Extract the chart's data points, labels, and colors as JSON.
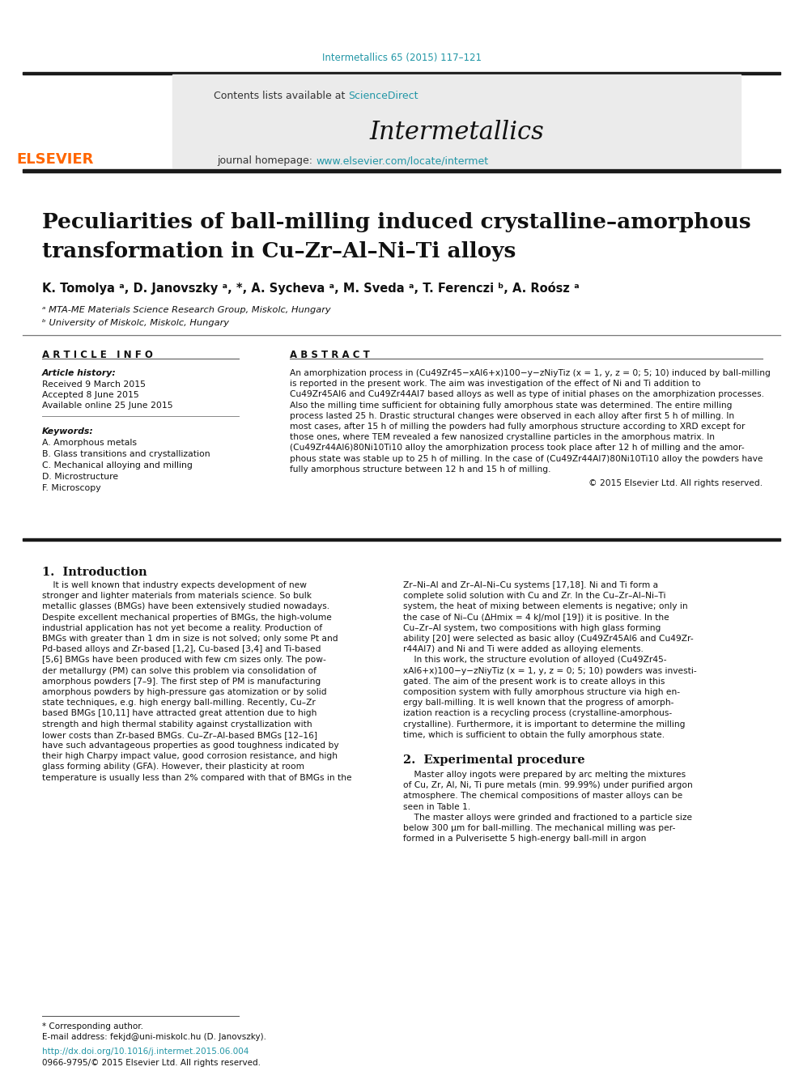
{
  "journal_ref": "Intermetallics 65 (2015) 117–121",
  "journal_name": "Intermetallics",
  "contents_text": "Contents lists available at ",
  "sciencedirect_text": "ScienceDirect",
  "homepage_text": "journal homepage: ",
  "homepage_url": "www.elsevier.com/locate/intermet",
  "title_line1": "Peculiarities of ball-milling induced crystalline–amorphous",
  "title_line2": "transformation in Cu–Zr–Al–Ni–Ti alloys",
  "authors": "K. Tomolya ᵃ, D. Janovszky ᵃ, *, A. Sycheva ᵃ, M. Sveda ᵃ, T. Ferenczi ᵇ, A. Roósz ᵃ",
  "affil_a": "ᵃ MTA-ME Materials Science Research Group, Miskolc, Hungary",
  "affil_b": "ᵇ University of Miskolc, Miskolc, Hungary",
  "article_info_title": "A R T I C L E   I N F O",
  "abstract_title": "A B S T R A C T",
  "article_history_title": "Article history:",
  "received": "Received 9 March 2015",
  "accepted": "Accepted 8 June 2015",
  "available": "Available online 25 June 2015",
  "keywords_title": "Keywords:",
  "keywords": [
    "A. Amorphous metals",
    "B. Glass transitions and crystallization",
    "C. Mechanical alloying and milling",
    "D. Microstructure",
    "F. Microscopy"
  ],
  "copyright": "© 2015 Elsevier Ltd. All rights reserved.",
  "section1_title": "1.  Introduction",
  "section2_title": "2.  Experimental procedure",
  "footnote_star": "* Corresponding author.",
  "footnote_email": "E-mail address: fekjd@uni-miskolc.hu (D. Janovszky).",
  "doi_text": "http://dx.doi.org/10.1016/j.intermet.2015.06.004",
  "issn_text": "0966-9795/© 2015 Elsevier Ltd. All rights reserved.",
  "bg_color": "#ffffff",
  "header_bg": "#ebebeb",
  "link_color": "#2196A6",
  "thick_rule_color": "#1a1a1a",
  "abstract_lines": [
    "An amorphization process in (Cu49Zr45−xAl6+x)100−y−zNiyTiz (x = 1, y, z = 0; 5; 10) induced by ball-milling",
    "is reported in the present work. The aim was investigation of the effect of Ni and Ti addition to",
    "Cu49Zr45Al6 and Cu49Zr44Al7 based alloys as well as type of initial phases on the amorphization processes.",
    "Also the milling time sufficient for obtaining fully amorphous state was determined. The entire milling",
    "process lasted 25 h. Drastic structural changes were observed in each alloy after first 5 h of milling. In",
    "most cases, after 15 h of milling the powders had fully amorphous structure according to XRD except for",
    "those ones, where TEM revealed a few nanosized crystalline particles in the amorphous matrix. In",
    "(Cu49Zr44Al6)80Ni10Ti10 alloy the amorphization process took place after 12 h of milling and the amor-",
    "phous state was stable up to 25 h of milling. In the case of (Cu49Zr44Al7)80Ni10Ti10 alloy the powders have",
    "fully amorphous structure between 12 h and 15 h of milling."
  ],
  "col1_lines": [
    "    It is well known that industry expects development of new",
    "stronger and lighter materials from materials science. So bulk",
    "metallic glasses (BMGs) have been extensively studied nowadays.",
    "Despite excellent mechanical properties of BMGs, the high-volume",
    "industrial application has not yet become a reality. Production of",
    "BMGs with greater than 1 dm in size is not solved; only some Pt and",
    "Pd-based alloys and Zr-based [1,2], Cu-based [3,4] and Ti-based",
    "[5,6] BMGs have been produced with few cm sizes only. The pow-",
    "der metallurgy (PM) can solve this problem via consolidation of",
    "amorphous powders [7–9]. The first step of PM is manufacturing",
    "amorphous powders by high-pressure gas atomization or by solid",
    "state techniques, e.g. high energy ball-milling. Recently, Cu–Zr",
    "based BMGs [10,11] have attracted great attention due to high",
    "strength and high thermal stability against crystallization with",
    "lower costs than Zr-based BMGs. Cu–Zr–Al-based BMGs [12–16]",
    "have such advantageous properties as good toughness indicated by",
    "their high Charpy impact value, good corrosion resistance, and high",
    "glass forming ability (GFA). However, their plasticity at room",
    "temperature is usually less than 2% compared with that of BMGs in the"
  ],
  "col2_lines": [
    "Zr–Ni–Al and Zr–Al–Ni–Cu systems [17,18]. Ni and Ti form a",
    "complete solid solution with Cu and Zr. In the Cu–Zr–Al–Ni–Ti",
    "system, the heat of mixing between elements is negative; only in",
    "the case of Ni–Cu (ΔHmix = 4 kJ/mol [19]) it is positive. In the",
    "Cu–Zr–Al system, two compositions with high glass forming",
    "ability [20] were selected as basic alloy (Cu49Zr45Al6 and Cu49Zr-",
    "r44Al7) and Ni and Ti were added as alloying elements.",
    "    In this work, the structure evolution of alloyed (Cu49Zr45-",
    "xAl6+x)100−y−zNiyTiz (x = 1, y, z = 0; 5; 10) powders was investi-",
    "gated. The aim of the present work is to create alloys in this",
    "composition system with fully amorphous structure via high en-",
    "ergy ball-milling. It is well known that the progress of amorph-",
    "ization reaction is a recycling process (crystalline-amorphous-",
    "crystalline). Furthermore, it is important to determine the milling",
    "time, which is sufficient to obtain the fully amorphous state."
  ],
  "exp_lines": [
    "    Master alloy ingots were prepared by arc melting the mixtures",
    "of Cu, Zr, Al, Ni, Ti pure metals (min. 99.99%) under purified argon",
    "atmosphere. The chemical compositions of master alloys can be",
    "seen in Table 1.",
    "    The master alloys were grinded and fractioned to a particle size",
    "below 300 μm for ball-milling. The mechanical milling was per-",
    "formed in a Pulverisette 5 high-energy ball-mill in argon"
  ]
}
